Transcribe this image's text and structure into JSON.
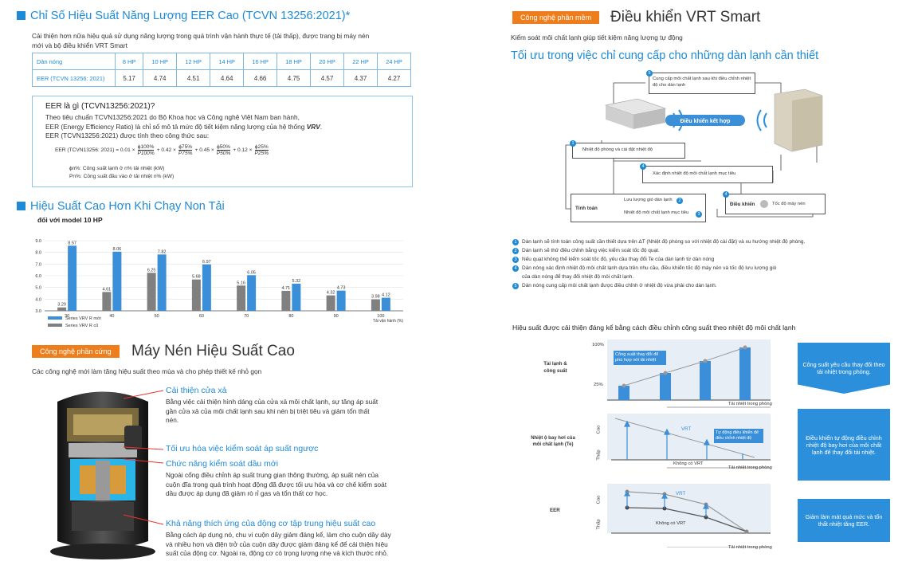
{
  "left": {
    "eer_title": "Chỉ Số Hiệu Suất Năng Lượng EER Cao (TCVN 13256:2021)*",
    "eer_intro_1": "Cải thiện hơn nữa hiệu quả sử dụng năng lượng trong quá trình vận hành thực tế (tải thấp), được trang bị máy nén",
    "eer_intro_2": "mới và bộ điều khiển VRT Smart",
    "table": {
      "headers": [
        "Dàn nóng",
        "8 HP",
        "10 HP",
        "12 HP",
        "14 HP",
        "16 HP",
        "18 HP",
        "20 HP",
        "22 HP",
        "24 HP"
      ],
      "row": [
        "EER (TCVN 13256: 2021)",
        "5.17",
        "4.74",
        "4.51",
        "4.64",
        "4.66",
        "4.75",
        "4.57",
        "4.37",
        "4.27"
      ]
    },
    "info": {
      "title": "EER là gì (TCVN13256:2021)?",
      "l1": "Theo tiêu chuẩn TCVN13256:2021 do Bộ Khoa học và Công nghệ Việt Nam ban hành,",
      "l2a": "EER (Energy Efficiency Ratio) là chỉ số mô tả mức độ tiết kiệm năng lượng của hệ thống ",
      "l2b": "VRV",
      "l3": "EER (TCVN13256:2021) được tính theo công thức sau:",
      "f_pre": "EER (TCVN13256: 2021) = 0.01 ×",
      "f_a1": "ɸ100%",
      "f_b1": "P100%",
      "f_m1": "+ 0.42 ×",
      "f_a2": "ɸ75%",
      "f_b2": "P75%",
      "f_m2": "+ 0.45 ×",
      "f_a3": "ɸ50%",
      "f_b3": "P50%",
      "f_m3": "+ 0.12 ×",
      "f_a4": "ɸ25%",
      "f_b4": "P25%",
      "d1": "ɸn%: Công suất lạnh ở n% tải nhiệt (kW)",
      "d2": "Pn%: Công suất đầu vào ở tải nhiệt n% (kW)"
    },
    "perf_title": "Hiệu Suất Cao Hơn Khi Chạy Non Tải",
    "perf_sub": "đối với model 10 HP",
    "comp_badge": "Công nghệ phần cứng",
    "comp_title": "Máy Nén Hiệu Suất Cao",
    "comp_sub": "Các công nghệ mới làm tăng hiệu suất theo mùa và cho phép thiết kế nhỏ gọn",
    "features": [
      {
        "title": "Cải thiện cửa xả",
        "desc": [
          "Bằng việc cải thiện hình dáng của cửa xả môi chất lạnh, sự tăng áp suất",
          "gần cửa xả của môi chất lạnh sau khi nén bị triệt tiêu và giảm tổn thất",
          "nén."
        ]
      },
      {
        "title": "Tối ưu hóa việc kiểm soát áp suất ngược",
        "desc": []
      },
      {
        "title": "Chức năng kiểm soát dầu mới",
        "desc": [
          "Ngoài cổng điều chỉnh áp suất trung gian thông thường, áp suất nén của",
          "cuộn đĩa trong quá trình hoạt động đã được tối ưu hóa và cơ chế kiểm soát",
          "dầu được áp dụng đã giảm rò rỉ gas và tổn thất cơ học."
        ]
      },
      {
        "title": "Khả năng thích ứng của động cơ tập trung hiệu suất cao",
        "desc": [
          "Bằng cách áp dụng nó, chu vi cuộn dây giảm đáng kể, làm cho cuộn dây dày",
          "và nhiều hơn và điện trở của cuộn dây được giảm đáng kể để cải thiện hiệu",
          "suất của động cơ. Ngoài ra, động cơ có trọng lượng nhẹ và kích thước nhỏ."
        ]
      }
    ]
  },
  "right": {
    "badge": "Công nghệ phần mềm",
    "title": "Điều khiển VRT Smart",
    "sub": "Kiểm soát môi chất lạnh giúp tiết kiệm năng lượng tự động",
    "h2": "Tối ưu trong việc chỉ cung cấp cho những dàn lạnh cần thiết",
    "diag": {
      "b5": "Cung cấp môi chất lạnh sau khi điều chỉnh nhiệt độ cho dàn lạnh",
      "ctrl": "Điều khiển kết hợp",
      "b1": "Nhiệt độ phòng và cài đặt nhiệt độ",
      "b4a": "Xác định nhiệt độ môi chất lạnh mục tiêu",
      "calc": "Tính toán",
      "b2": "Lưu lượng gió dàn lạnh",
      "b3": "Nhiệt độ môi chất lạnh mục tiêu",
      "dk": "Điều khiển",
      "fan": "Tốc độ máy nén"
    },
    "legend": [
      "Dàn lạnh sẽ tính toán công suất cần thiết dựa trên ΔT (Nhiệt độ phòng so với nhiệt độ cài đặt) và xu hướng nhiệt độ phòng.",
      "Dàn lạnh sẽ thử điều chỉnh bằng việc kiểm soát tốc độ quạt.",
      "Nếu quạt không thể kiểm soát tốc độ, yêu cầu thay đổi Te của dàn lạnh từ dàn nóng",
      "Dàn nóng xác định nhiệt độ môi chất lạnh dựa trên nhu cầu, điều khiển tốc độ máy nén và tốc độ lưu lượng gió",
      "của dàn nóng để thay đổi nhiệt độ môi chất lạnh.",
      "Dàn nóng cung cấp môi chất lạnh được điều chỉnh ở nhiệt độ vừa phải cho dàn lạnh."
    ],
    "eff_title": "Hiệu suất được cải thiện đáng kể bằng cách điều chỉnh công suất theo nhiệt độ môi chất lạnh",
    "c1": {
      "label": "Tải lạnh & công suất",
      "ymax": "100%",
      "ymin": "25%",
      "note": "Công suất thay đổi để phù hợp với tải nhiệt",
      "x": "Tải nhiệt trong phòng"
    },
    "c2": {
      "label": "Nhiệt ộ bay hơi của môi chất lạnh (Te)",
      "hi": "Cao",
      "lo": "Thấp",
      "vrt": "VRT",
      "note": "Tự động điều khiển để điều chỉnh nhiệt độ",
      "novrt": "Không có VRT",
      "x": "Tải nhiệt trong phòng"
    },
    "c3": {
      "label": "EER",
      "hi": "Cao",
      "lo": "Thấp",
      "vrt": "VRT",
      "novrt": "Không có VRT",
      "x": "Tải nhiệt trong phòng"
    },
    "panels": [
      "Công suất yêu cầu thay đổi theo tải nhiệt trong phòng.",
      "Điều khiển tự động điều chỉnh nhiệt độ bay hơi của môi chất lạnh để thay đổi tải nhiệt.",
      "Giảm làm mát quá mức và tổn thất nhiệt tăng EER."
    ]
  },
  "chart_data": {
    "type": "bar",
    "categories": [
      "30",
      "40",
      "50",
      "60",
      "70",
      "80",
      "90",
      "100"
    ],
    "series": [
      {
        "name": "Series VRV R cũ",
        "values": [
          3.29,
          4.61,
          6.25,
          5.68,
          5.16,
          4.71,
          4.32,
          3.98
        ],
        "color": "#808080"
      },
      {
        "name": "Series VRV R mới",
        "values": [
          8.57,
          8.06,
          7.82,
          6.97,
          6.05,
          5.32,
          4.73,
          4.12
        ],
        "color": "#3a8fd8"
      }
    ],
    "yticks": [
      "9.0",
      "8.0",
      "7.0",
      "6.0",
      "5.0",
      "4.0",
      "3.0"
    ],
    "ylim": [
      3,
      9
    ],
    "xlabel": "Tải vận hành (%)",
    "legend_new": "Series VRV R mới",
    "legend_old": "Series VRV R cũ"
  }
}
